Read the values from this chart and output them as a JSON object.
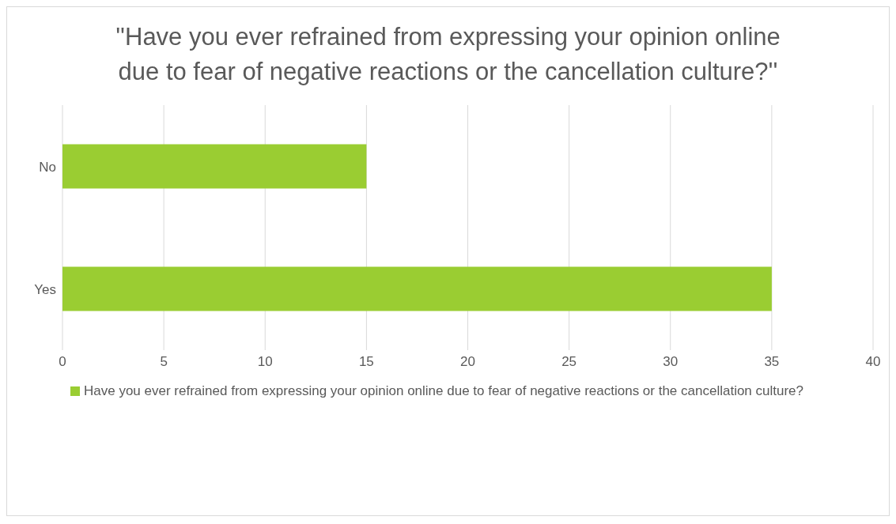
{
  "chart_data": {
    "type": "bar",
    "orientation": "horizontal",
    "title": "''Have you ever refrained from expressing your opinion online due to fear of negative reactions or the cancellation culture?''",
    "categories": [
      "No",
      "Yes"
    ],
    "series": [
      {
        "name": "Have you ever refrained from expressing your opinion online due to fear of negative reactions or the cancellation culture?",
        "color": "#9acd32",
        "values": [
          15,
          35
        ]
      }
    ],
    "xlim": [
      0,
      40
    ],
    "xticks": [
      0,
      5,
      10,
      15,
      20,
      25,
      30,
      35,
      40
    ],
    "grid": "x",
    "legend": "bottom"
  }
}
